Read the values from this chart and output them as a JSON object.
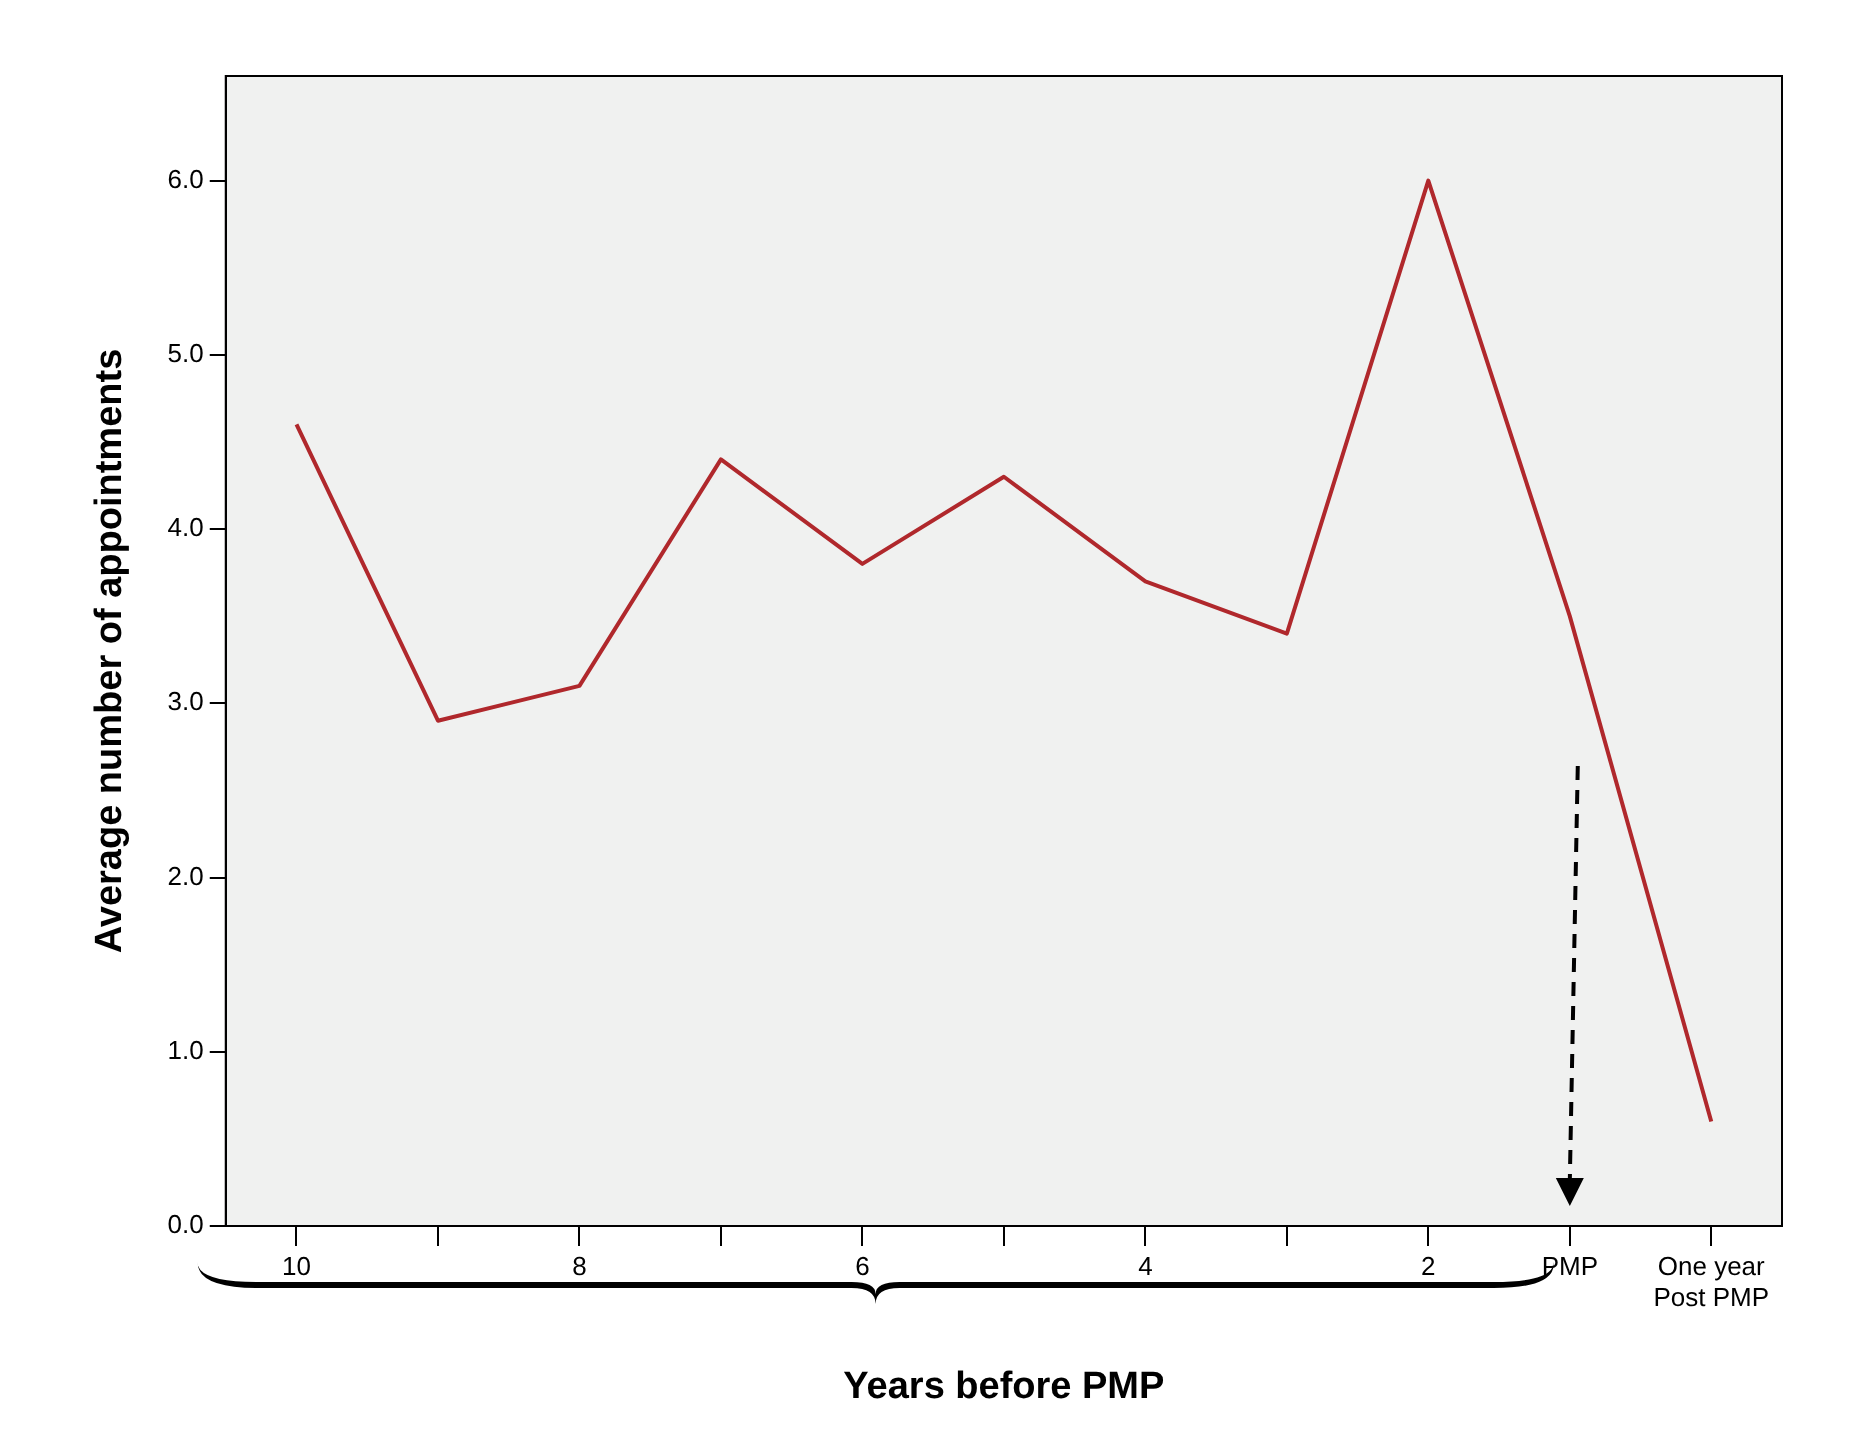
{
  "chart_data": {
    "type": "line",
    "xlabel": "Years before PMP",
    "ylabel": "Average number of appointments",
    "categories": [
      "10",
      null,
      "8",
      null,
      "6",
      null,
      "4",
      null,
      "2",
      "PMP",
      "One year\nPost PMP"
    ],
    "series": [
      {
        "color": "#b0282c",
        "values": [
          4.6,
          2.9,
          3.1,
          4.4,
          3.8,
          4.3,
          3.7,
          3.4,
          6.0,
          3.5,
          0.6
        ]
      }
    ],
    "ylim": [
      0,
      6.6
    ],
    "yticks": [
      {
        "value": 0,
        "label": "0.0"
      },
      {
        "value": 1,
        "label": "1.0"
      },
      {
        "value": 2,
        "label": "2.0"
      },
      {
        "value": 3,
        "label": "3.0"
      },
      {
        "value": 4,
        "label": "4.0"
      },
      {
        "value": 5,
        "label": "5.0"
      },
      {
        "value": 6,
        "label": "6.0"
      }
    ],
    "grid": false,
    "legend": false,
    "marker": "none",
    "line_style": "solid"
  }
}
